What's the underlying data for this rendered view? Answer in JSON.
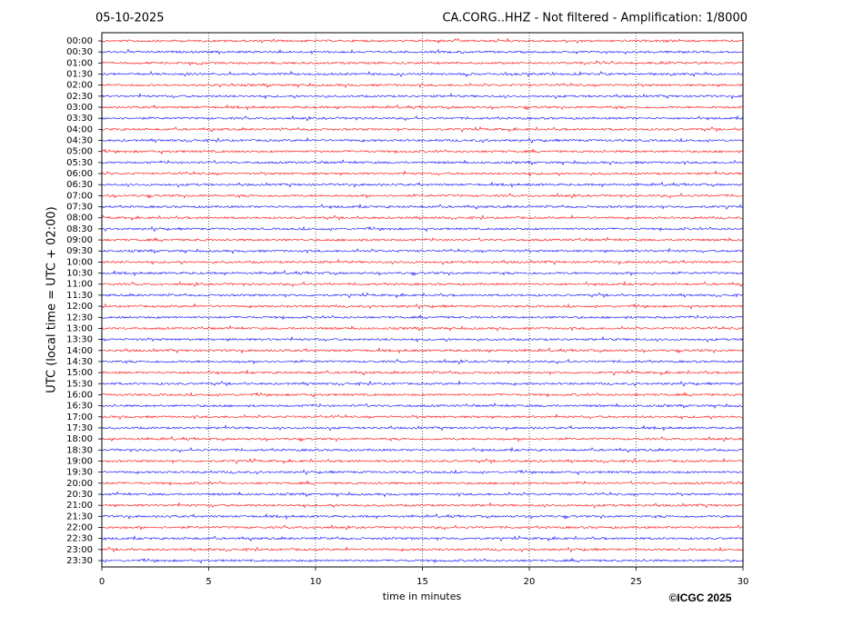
{
  "chart_data": {
    "type": "helicorder",
    "date": "05-10-2025",
    "title": "CA.CORG..HHZ - Not filtered - Amplification: 1/8000",
    "ylabel": "UTC (local time = UTC + 02:00)",
    "xlabel": "time in minutes",
    "credit": "©ICGC 2025",
    "categories": [
      "00:00",
      "00:30",
      "01:00",
      "01:30",
      "02:00",
      "02:30",
      "03:00",
      "03:30",
      "04:00",
      "04:30",
      "05:00",
      "05:30",
      "06:00",
      "06:30",
      "07:00",
      "07:30",
      "08:00",
      "08:30",
      "09:00",
      "09:30",
      "10:00",
      "10:30",
      "11:00",
      "11:30",
      "12:00",
      "12:30",
      "13:00",
      "13:30",
      "14:00",
      "14:30",
      "15:00",
      "15:30",
      "16:00",
      "16:30",
      "17:00",
      "17:30",
      "18:00",
      "18:30",
      "19:00",
      "19:30",
      "20:00",
      "20:30",
      "21:00",
      "21:30",
      "22:00",
      "22:30",
      "23:00",
      "23:30"
    ],
    "colors": [
      "#ff0000",
      "#0000ff"
    ],
    "xlim": [
      0,
      30
    ],
    "xticks": [
      0,
      5,
      10,
      15,
      20,
      25,
      30
    ],
    "grid": true
  }
}
